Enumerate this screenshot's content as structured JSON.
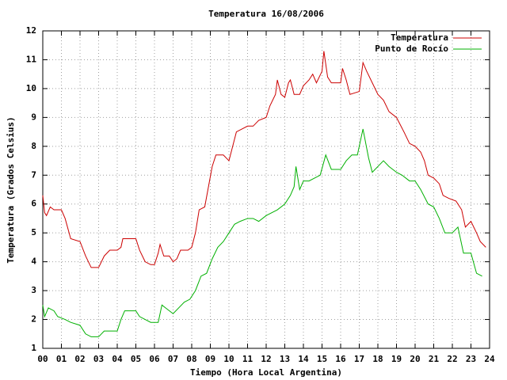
{
  "chart_data": {
    "type": "line",
    "title": "Temperatura 16/08/2006",
    "x_label": "Tiempo (Hora Local Argentina)",
    "y_label": "Temperatura (Grados Celsius)",
    "xlim": [
      0,
      24
    ],
    "ylim": [
      1,
      12
    ],
    "grid": true,
    "legend": "top-right",
    "xticks": [
      {
        "value": 0,
        "label": "00"
      },
      {
        "value": 1,
        "label": "01"
      },
      {
        "value": 2,
        "label": "02"
      },
      {
        "value": 3,
        "label": "03"
      },
      {
        "value": 4,
        "label": "04"
      },
      {
        "value": 5,
        "label": "05"
      },
      {
        "value": 6,
        "label": "06"
      },
      {
        "value": 7,
        "label": "07"
      },
      {
        "value": 8,
        "label": "08"
      },
      {
        "value": 9,
        "label": "09"
      },
      10,
      11,
      12,
      13,
      14,
      15,
      16,
      17,
      18,
      19,
      20,
      21,
      22,
      23,
      24
    ],
    "yticks": [
      1,
      2,
      3,
      4,
      5,
      6,
      7,
      8,
      9,
      10,
      11,
      12
    ],
    "series": [
      {
        "name": "Temperatura",
        "color": "#cc0000",
        "x": [
          0,
          0.1,
          0.2,
          0.4,
          0.6,
          1.0,
          1.2,
          1.5,
          2.0,
          2.3,
          2.6,
          3.0,
          3.3,
          3.6,
          4.0,
          4.2,
          4.3,
          4.8,
          5.0,
          5.2,
          5.5,
          5.8,
          6.0,
          6.2,
          6.3,
          6.5,
          6.8,
          7.0,
          7.2,
          7.4,
          7.8,
          8.0,
          8.2,
          8.4,
          8.7,
          8.9,
          9.1,
          9.3,
          9.7,
          10.0,
          10.2,
          10.4,
          10.7,
          11.0,
          11.3,
          11.6,
          12.0,
          12.2,
          12.5,
          12.6,
          12.8,
          13.0,
          13.2,
          13.3,
          13.5,
          13.8,
          14.0,
          14.3,
          14.5,
          14.7,
          15.0,
          15.1,
          15.3,
          15.5,
          16.0,
          16.1,
          16.3,
          16.5,
          17.0,
          17.2,
          17.4,
          17.7,
          18.0,
          18.3,
          18.6,
          19.0,
          19.4,
          19.7,
          20.0,
          20.3,
          20.5,
          20.7,
          21.0,
          21.3,
          21.5,
          21.8,
          22.2,
          22.5,
          22.7,
          23.0,
          23.3,
          23.5,
          23.8
        ],
        "values": [
          6.3,
          5.7,
          5.6,
          5.9,
          5.8,
          5.8,
          5.5,
          4.8,
          4.7,
          4.2,
          3.8,
          3.8,
          4.2,
          4.4,
          4.4,
          4.5,
          4.8,
          4.8,
          4.8,
          4.4,
          4.0,
          3.9,
          3.9,
          4.3,
          4.6,
          4.2,
          4.2,
          4.0,
          4.1,
          4.4,
          4.4,
          4.5,
          5.0,
          5.8,
          5.9,
          6.6,
          7.3,
          7.7,
          7.7,
          7.5,
          8.0,
          8.5,
          8.6,
          8.7,
          8.7,
          8.9,
          9.0,
          9.4,
          9.8,
          10.3,
          9.8,
          9.7,
          10.2,
          10.3,
          9.8,
          9.8,
          10.1,
          10.3,
          10.5,
          10.2,
          10.6,
          11.3,
          10.4,
          10.2,
          10.2,
          10.7,
          10.3,
          9.8,
          9.9,
          10.9,
          10.6,
          10.2,
          9.8,
          9.6,
          9.2,
          9.0,
          8.5,
          8.1,
          8.0,
          7.8,
          7.5,
          7.0,
          6.9,
          6.7,
          6.3,
          6.2,
          6.1,
          5.8,
          5.2,
          5.4,
          5.0,
          4.7,
          4.5
        ]
      },
      {
        "name": "Punto de Rocío",
        "color": "#00b000",
        "x": [
          0,
          0.1,
          0.3,
          0.6,
          0.8,
          1.2,
          1.5,
          2.0,
          2.3,
          2.6,
          3.0,
          3.3,
          3.6,
          4.0,
          4.2,
          4.4,
          4.8,
          5.0,
          5.2,
          5.5,
          5.8,
          6.2,
          6.4,
          6.6,
          7.0,
          7.3,
          7.6,
          7.9,
          8.2,
          8.5,
          8.8,
          9.1,
          9.4,
          9.7,
          10.0,
          10.3,
          10.6,
          11.0,
          11.3,
          11.6,
          12.0,
          12.3,
          12.6,
          13.0,
          13.3,
          13.5,
          13.6,
          13.8,
          14.0,
          14.3,
          14.6,
          14.9,
          15.2,
          15.5,
          16.0,
          16.3,
          16.6,
          16.9,
          17.2,
          17.5,
          17.7,
          18.0,
          18.3,
          18.6,
          19.0,
          19.3,
          19.7,
          20.0,
          20.3,
          20.7,
          21.0,
          21.3,
          21.6,
          22.0,
          22.3,
          22.6,
          23.0,
          23.3,
          23.6
        ],
        "values": [
          2.5,
          2.1,
          2.4,
          2.3,
          2.1,
          2.0,
          1.9,
          1.8,
          1.5,
          1.4,
          1.4,
          1.6,
          1.6,
          1.6,
          2.0,
          2.3,
          2.3,
          2.3,
          2.1,
          2.0,
          1.9,
          1.9,
          2.5,
          2.4,
          2.2,
          2.4,
          2.6,
          2.7,
          3.0,
          3.5,
          3.6,
          4.1,
          4.5,
          4.7,
          5.0,
          5.3,
          5.4,
          5.5,
          5.5,
          5.4,
          5.6,
          5.7,
          5.8,
          6.0,
          6.3,
          6.6,
          7.3,
          6.5,
          6.8,
          6.8,
          6.9,
          7.0,
          7.7,
          7.2,
          7.2,
          7.5,
          7.7,
          7.7,
          8.6,
          7.6,
          7.1,
          7.3,
          7.5,
          7.3,
          7.1,
          7.0,
          6.8,
          6.8,
          6.5,
          6.0,
          5.9,
          5.5,
          5.0,
          5.0,
          5.2,
          4.3,
          4.3,
          3.6,
          3.5
        ]
      }
    ]
  }
}
